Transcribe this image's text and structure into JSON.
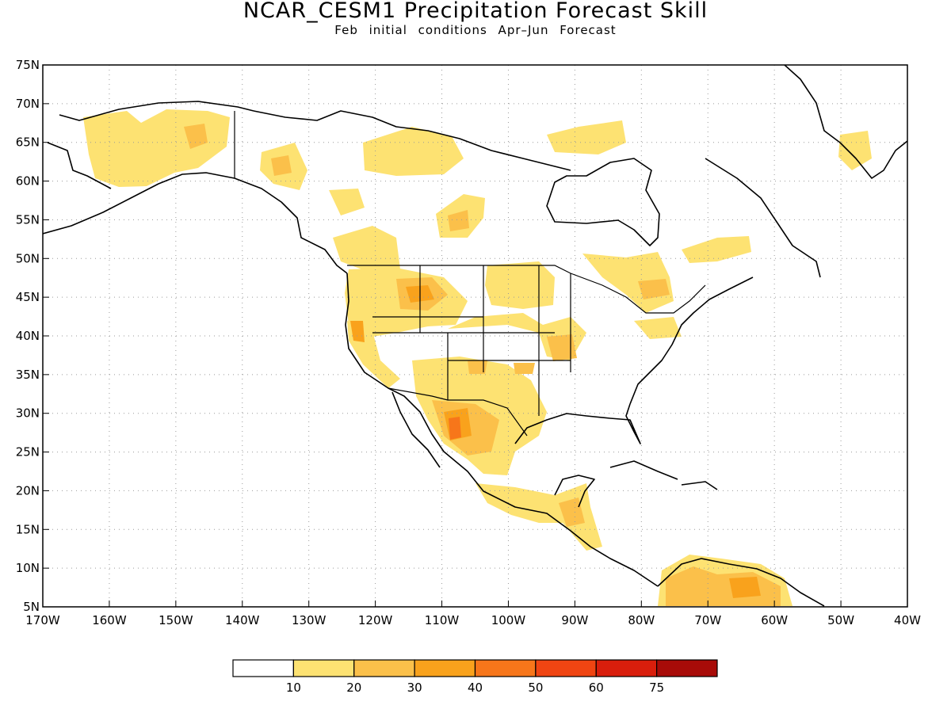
{
  "title": "NCAR_CESM1 Precipitation Forecast Skill",
  "subtitle": "Feb initial conditions  Apr–Jun Forecast",
  "map": {
    "lon_range": [
      -170,
      -40
    ],
    "lat_range": [
      5,
      75
    ],
    "grid": "dotted",
    "lat_ticks": [
      "75N",
      "70N",
      "65N",
      "60N",
      "55N",
      "50N",
      "45N",
      "40N",
      "35N",
      "30N",
      "25N",
      "20N",
      "15N",
      "10N",
      "5N"
    ],
    "lon_ticks": [
      "170W",
      "160W",
      "150W",
      "140W",
      "130W",
      "120W",
      "110W",
      "100W",
      "90W",
      "80W",
      "70W",
      "60W",
      "50W",
      "40W"
    ]
  },
  "colorbar": {
    "labels": [
      "10",
      "20",
      "30",
      "40",
      "50",
      "60",
      "75"
    ],
    "colors": [
      "#ffffff",
      "#fde272",
      "#fbc04a",
      "#f9a21c",
      "#f7761a",
      "#f04512",
      "#d91e0c",
      "#a80b08"
    ]
  }
}
